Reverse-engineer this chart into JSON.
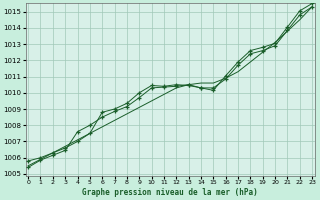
{
  "title": "Graphe pression niveau de la mer (hPa)",
  "background_color": "#c8eedd",
  "plot_bg_color": "#d8f0e8",
  "grid_color": "#a0c8b8",
  "line_color": "#1a5e2a",
  "xlim": [
    0,
    23
  ],
  "ylim": [
    1005,
    1015.5
  ],
  "yticks": [
    1005,
    1006,
    1007,
    1008,
    1009,
    1010,
    1011,
    1012,
    1013,
    1014,
    1015
  ],
  "xticks": [
    0,
    1,
    2,
    3,
    4,
    5,
    6,
    7,
    8,
    9,
    10,
    11,
    12,
    13,
    14,
    15,
    16,
    17,
    18,
    19,
    20,
    21,
    22,
    23
  ],
  "x": [
    0,
    1,
    2,
    3,
    4,
    5,
    6,
    7,
    8,
    9,
    10,
    11,
    12,
    13,
    14,
    15,
    16,
    17,
    18,
    19,
    20,
    21,
    22,
    23
  ],
  "y_line_straight": [
    1005.5,
    1005.9,
    1006.3,
    1006.7,
    1007.1,
    1007.5,
    1007.9,
    1008.3,
    1008.7,
    1009.1,
    1009.5,
    1009.9,
    1010.3,
    1010.5,
    1010.6,
    1010.6,
    1010.9,
    1011.3,
    1011.9,
    1012.5,
    1013.1,
    1013.8,
    1014.5,
    1015.3
  ],
  "y_line_upper": [
    1005.8,
    1006.0,
    1006.3,
    1006.6,
    1007.0,
    1007.5,
    1008.8,
    1009.0,
    1009.35,
    1010.0,
    1010.45,
    1010.4,
    1010.5,
    1010.45,
    1010.3,
    1010.15,
    1011.05,
    1011.9,
    1012.6,
    1012.8,
    1013.05,
    1014.05,
    1015.05,
    1015.5
  ],
  "y_line_lower": [
    1005.4,
    1005.85,
    1006.15,
    1006.45,
    1007.6,
    1008.0,
    1008.5,
    1008.85,
    1009.15,
    1009.7,
    1010.3,
    1010.35,
    1010.4,
    1010.5,
    1010.3,
    1010.3,
    1010.85,
    1011.7,
    1012.4,
    1012.6,
    1012.9,
    1013.85,
    1014.8,
    1015.3
  ],
  "marker": "+",
  "markersize": 3.5,
  "linewidth": 0.7,
  "markeredgewidth": 0.9
}
